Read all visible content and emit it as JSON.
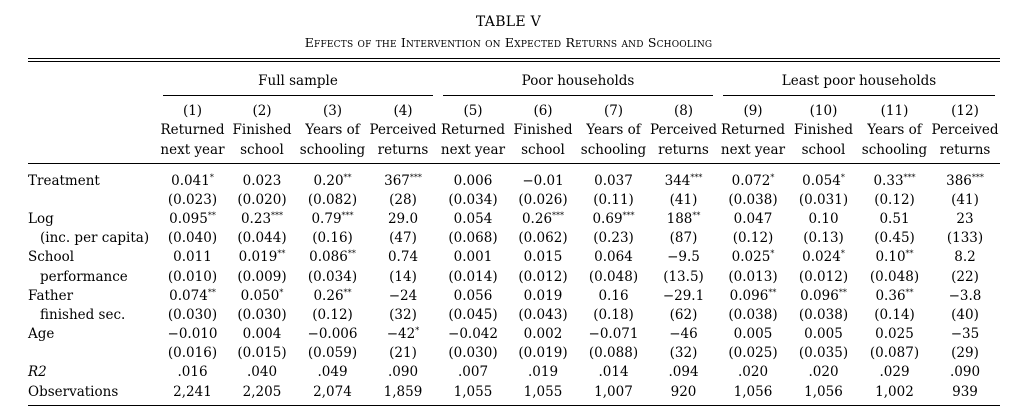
{
  "table": {
    "number": "TABLE V",
    "caption": "Effects of the Intervention on Expected Returns and Schooling",
    "groups": [
      "Full sample",
      "Poor households",
      "Least poor households"
    ],
    "col_numbers": [
      "(1)",
      "(2)",
      "(3)",
      "(4)",
      "(5)",
      "(6)",
      "(7)",
      "(8)",
      "(9)",
      "(10)",
      "(11)",
      "(12)"
    ],
    "col_head_1": [
      "Returned",
      "Finished",
      "Years of",
      "Perceived",
      "Returned",
      "Finished",
      "Years of",
      "Perceived",
      "Returned",
      "Finished",
      "Years of",
      "Perceived"
    ],
    "col_head_2": [
      "next year",
      "school",
      "schooling",
      "returns",
      "next year",
      "school",
      "schooling",
      "returns",
      "next year",
      "school",
      "schooling",
      "returns"
    ],
    "rows": [
      {
        "label": "Treatment",
        "indent": false,
        "cells": [
          [
            "0.041",
            "*"
          ],
          [
            "0.023",
            ""
          ],
          [
            "0.20",
            "**"
          ],
          [
            "367",
            "***"
          ],
          [
            "0.006",
            ""
          ],
          [
            "−0.01",
            ""
          ],
          [
            "0.037",
            ""
          ],
          [
            "344",
            "***"
          ],
          [
            "0.072",
            "*"
          ],
          [
            "0.054",
            "*"
          ],
          [
            "0.33",
            "***"
          ],
          [
            "386",
            "***"
          ]
        ]
      },
      {
        "label": "",
        "indent": false,
        "cells": [
          [
            "(0.023)",
            ""
          ],
          [
            "(0.020)",
            ""
          ],
          [
            "(0.082)",
            ""
          ],
          [
            "(28)",
            ""
          ],
          [
            "(0.034)",
            ""
          ],
          [
            "(0.026)",
            ""
          ],
          [
            "(0.11)",
            ""
          ],
          [
            "(41)",
            ""
          ],
          [
            "(0.038)",
            ""
          ],
          [
            "(0.031)",
            ""
          ],
          [
            "(0.12)",
            ""
          ],
          [
            "(41)",
            ""
          ]
        ]
      },
      {
        "label": "Log",
        "indent": false,
        "cells": [
          [
            "0.095",
            "**"
          ],
          [
            "0.23",
            "***"
          ],
          [
            "0.79",
            "***"
          ],
          [
            "29.0",
            ""
          ],
          [
            "0.054",
            ""
          ],
          [
            "0.26",
            "***"
          ],
          [
            "0.69",
            "***"
          ],
          [
            "188",
            "**"
          ],
          [
            "0.047",
            ""
          ],
          [
            "0.10",
            ""
          ],
          [
            "0.51",
            ""
          ],
          [
            "23",
            ""
          ]
        ]
      },
      {
        "label": "(inc. per capita)",
        "indent": true,
        "cells": [
          [
            "(0.040)",
            ""
          ],
          [
            "(0.044)",
            ""
          ],
          [
            "(0.16)",
            ""
          ],
          [
            "(47)",
            ""
          ],
          [
            "(0.068)",
            ""
          ],
          [
            "(0.062)",
            ""
          ],
          [
            "(0.23)",
            ""
          ],
          [
            "(87)",
            ""
          ],
          [
            "(0.12)",
            ""
          ],
          [
            "(0.13)",
            ""
          ],
          [
            "(0.45)",
            ""
          ],
          [
            "(133)",
            ""
          ]
        ]
      },
      {
        "label": "School",
        "indent": false,
        "cells": [
          [
            "0.011",
            ""
          ],
          [
            "0.019",
            "**"
          ],
          [
            "0.086",
            "**"
          ],
          [
            "0.74",
            ""
          ],
          [
            "0.001",
            ""
          ],
          [
            "0.015",
            ""
          ],
          [
            "0.064",
            ""
          ],
          [
            "−9.5",
            ""
          ],
          [
            "0.025",
            "*"
          ],
          [
            "0.024",
            "*"
          ],
          [
            "0.10",
            "**"
          ],
          [
            "8.2",
            ""
          ]
        ]
      },
      {
        "label": "performance",
        "indent": true,
        "cells": [
          [
            "(0.010)",
            ""
          ],
          [
            "(0.009)",
            ""
          ],
          [
            "(0.034)",
            ""
          ],
          [
            "(14)",
            ""
          ],
          [
            "(0.014)",
            ""
          ],
          [
            "(0.012)",
            ""
          ],
          [
            "(0.048)",
            ""
          ],
          [
            "(13.5)",
            ""
          ],
          [
            "(0.013)",
            ""
          ],
          [
            "(0.012)",
            ""
          ],
          [
            "(0.048)",
            ""
          ],
          [
            "(22)",
            ""
          ]
        ]
      },
      {
        "label": "Father",
        "indent": false,
        "cells": [
          [
            "0.074",
            "**"
          ],
          [
            "0.050",
            "*"
          ],
          [
            "0.26",
            "**"
          ],
          [
            "−24",
            ""
          ],
          [
            "0.056",
            ""
          ],
          [
            "0.019",
            ""
          ],
          [
            "0.16",
            ""
          ],
          [
            "−29.1",
            ""
          ],
          [
            "0.096",
            "**"
          ],
          [
            "0.096",
            "**"
          ],
          [
            "0.36",
            "**"
          ],
          [
            "−3.8",
            ""
          ]
        ]
      },
      {
        "label": "finished sec.",
        "indent": true,
        "cells": [
          [
            "(0.030)",
            ""
          ],
          [
            "(0.030)",
            ""
          ],
          [
            "(0.12)",
            ""
          ],
          [
            "(32)",
            ""
          ],
          [
            "(0.045)",
            ""
          ],
          [
            "(0.043)",
            ""
          ],
          [
            "(0.18)",
            ""
          ],
          [
            "(62)",
            ""
          ],
          [
            "(0.038)",
            ""
          ],
          [
            "(0.038)",
            ""
          ],
          [
            "(0.14)",
            ""
          ],
          [
            "(40)",
            ""
          ]
        ]
      },
      {
        "label": "Age",
        "indent": false,
        "cells": [
          [
            "−0.010",
            ""
          ],
          [
            "0.004",
            ""
          ],
          [
            "−0.006",
            ""
          ],
          [
            "−42",
            "*"
          ],
          [
            "−0.042",
            ""
          ],
          [
            "0.002",
            ""
          ],
          [
            "−0.071",
            ""
          ],
          [
            "−46",
            ""
          ],
          [
            "0.005",
            ""
          ],
          [
            "0.005",
            ""
          ],
          [
            "0.025",
            ""
          ],
          [
            "−35",
            ""
          ]
        ]
      },
      {
        "label": "",
        "indent": false,
        "cells": [
          [
            "(0.016)",
            ""
          ],
          [
            "(0.015)",
            ""
          ],
          [
            "(0.059)",
            ""
          ],
          [
            "(21)",
            ""
          ],
          [
            "(0.030)",
            ""
          ],
          [
            "(0.019)",
            ""
          ],
          [
            "(0.088)",
            ""
          ],
          [
            "(32)",
            ""
          ],
          [
            "(0.025)",
            ""
          ],
          [
            "(0.035)",
            ""
          ],
          [
            "(0.087)",
            ""
          ],
          [
            "(29)",
            ""
          ]
        ]
      },
      {
        "label": "R2",
        "indent": false,
        "italic": true,
        "cells": [
          [
            ".016",
            ""
          ],
          [
            ".040",
            ""
          ],
          [
            ".049",
            ""
          ],
          [
            ".090",
            ""
          ],
          [
            ".007",
            ""
          ],
          [
            ".019",
            ""
          ],
          [
            ".014",
            ""
          ],
          [
            ".094",
            ""
          ],
          [
            ".020",
            ""
          ],
          [
            ".020",
            ""
          ],
          [
            ".029",
            ""
          ],
          [
            ".090",
            ""
          ]
        ]
      },
      {
        "label": "Observations",
        "indent": false,
        "cells": [
          [
            "2,241",
            ""
          ],
          [
            "2,205",
            ""
          ],
          [
            "2,074",
            ""
          ],
          [
            "1,859",
            ""
          ],
          [
            "1,055",
            ""
          ],
          [
            "1,055",
            ""
          ],
          [
            "1,007",
            ""
          ],
          [
            "920",
            ""
          ],
          [
            "1,056",
            ""
          ],
          [
            "1,056",
            ""
          ],
          [
            "1,002",
            ""
          ],
          [
            "939",
            ""
          ]
        ]
      }
    ]
  }
}
